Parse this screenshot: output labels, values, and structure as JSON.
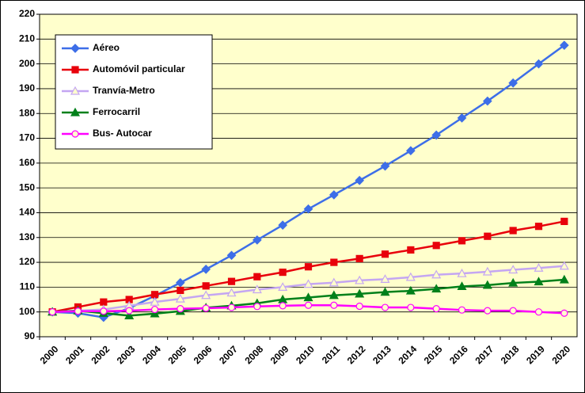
{
  "chart_data": {
    "type": "line",
    "categories": [
      "2000",
      "2001",
      "2002",
      "2003",
      "2004",
      "2005",
      "2006",
      "2007",
      "2008",
      "2009",
      "2010",
      "2011",
      "2012",
      "2013",
      "2014",
      "2015",
      "2016",
      "2017",
      "2018",
      "2019",
      "2020"
    ],
    "series": [
      {
        "name": "Aéreo",
        "color": "#3d6ee8",
        "marker": "diamond",
        "values": [
          100,
          99.5,
          97.8,
          101.5,
          106.5,
          111.8,
          117.2,
          122.8,
          129,
          135,
          141.5,
          147.2,
          153,
          158.8,
          165,
          171.3,
          178.2,
          185,
          192.3,
          200,
          207.5
        ]
      },
      {
        "name": "Automóvil particular",
        "color": "#e8000b",
        "marker": "square",
        "values": [
          100,
          102,
          104,
          105,
          107,
          108.7,
          110.5,
          112.3,
          114.2,
          116,
          118.2,
          120,
          121.5,
          123.3,
          125,
          126.8,
          128.7,
          130.5,
          132.8,
          134.5,
          136.5
        ]
      },
      {
        "name": "Tranvía-Metro",
        "color": "#c4a6f2",
        "marker": "triangle-open",
        "values": [
          100,
          100.5,
          101,
          102.5,
          104,
          105.3,
          106.7,
          107.7,
          109,
          110,
          111.2,
          111.8,
          112.7,
          113.2,
          114,
          115,
          115.5,
          116.2,
          117,
          117.7,
          118.5
        ]
      },
      {
        "name": "Ferrocarril",
        "color": "#00801a",
        "marker": "triangle",
        "values": [
          100,
          100.5,
          99.5,
          98.5,
          99.3,
          100.3,
          101.7,
          102.5,
          103.5,
          105,
          105.8,
          106.7,
          107.3,
          108,
          108.5,
          109.3,
          110.3,
          110.8,
          111.7,
          112.2,
          113
        ]
      },
      {
        "name": "Bus- Autocar",
        "color": "#ff00ff",
        "marker": "circle-open",
        "values": [
          100,
          100.3,
          100.3,
          100.5,
          101,
          101.3,
          101.5,
          101.8,
          102.2,
          102.5,
          102.7,
          102.7,
          102.3,
          101.8,
          101.8,
          101.3,
          100.8,
          100.5,
          100.5,
          100,
          99.5
        ]
      }
    ],
    "ylim": [
      90,
      220
    ],
    "yticks": [
      90,
      100,
      110,
      120,
      130,
      140,
      150,
      160,
      170,
      180,
      190,
      200,
      210,
      220
    ],
    "grid": true,
    "legend": "upper-left",
    "plot_background": "#ffffcc"
  }
}
